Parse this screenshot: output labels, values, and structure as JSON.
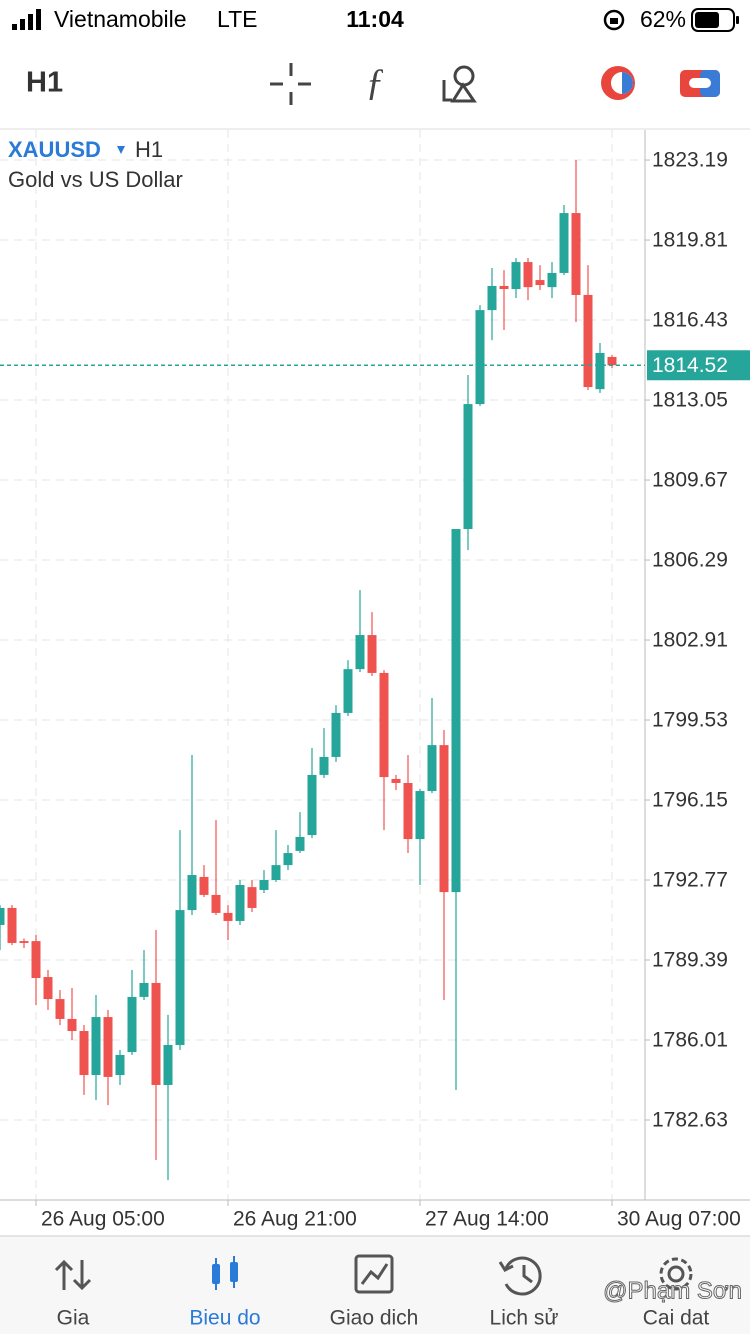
{
  "status_bar": {
    "carrier": "Vietnamobile",
    "network": "LTE",
    "time": "11:04",
    "battery": "62%"
  },
  "toolbar": {
    "timeframe": "H1"
  },
  "chart_data": {
    "type": "candlestick",
    "symbol": "XAUUSD",
    "timeframe": "H1",
    "description": "Gold vs US Dollar",
    "categories": [
      null,
      null,
      null,
      "26 Aug 05:00",
      null,
      null,
      null,
      null,
      null,
      null,
      null,
      null,
      null,
      null,
      null,
      null,
      null,
      null,
      null,
      "26 Aug 21:00",
      null,
      null,
      null,
      null,
      null,
      null,
      null,
      null,
      null,
      null,
      null,
      null,
      null,
      null,
      null,
      "27 Aug 14:00",
      null,
      null,
      null,
      null,
      null,
      null,
      null,
      null,
      null,
      null,
      null,
      null,
      null,
      null,
      null,
      "30 Aug 07:00"
    ],
    "open": [
      1790.87,
      1791.59,
      1790.19,
      1790.19,
      1788.67,
      1787.74,
      1786.9,
      1786.39,
      1784.53,
      1786.98,
      1784.53,
      1785.5,
      1787.83,
      1788.42,
      1784.11,
      1785.8,
      1791.5,
      1792.9,
      1792.14,
      1791.38,
      1791.04,
      1792.47,
      1792.35,
      1792.77,
      1793.4,
      1794.0,
      1794.67,
      1797.21,
      1797.97,
      1799.83,
      1801.68,
      1803.12,
      1801.52,
      1797.04,
      1796.87,
      1794.5,
      1796.53,
      1798.47,
      1792.26,
      1807.6,
      1812.88,
      1816.85,
      1817.87,
      1817.74,
      1818.88,
      1818.12,
      1817.82,
      1818.42,
      1820.95,
      1817.49,
      1813.51,
      1814.87
    ],
    "high": [
      1791.71,
      1791.71,
      1790.3,
      1790.45,
      1788.97,
      1788.12,
      1788.21,
      1786.64,
      1787.91,
      1787.28,
      1785.59,
      1788.97,
      1789.81,
      1790.66,
      1787.07,
      1794.88,
      1798.05,
      1793.4,
      1795.3,
      1791.71,
      1792.77,
      1792.77,
      1793.19,
      1794.88,
      1794.25,
      1795.64,
      1798.35,
      1799.19,
      1800.16,
      1802.06,
      1805.02,
      1804.09,
      1801.64,
      1797.21,
      1798.05,
      1796.61,
      1800.46,
      1799.11,
      1807.6,
      1814.11,
      1817.06,
      1818.63,
      1818.54,
      1819.05,
      1819.05,
      1818.75,
      1818.88,
      1821.29,
      1823.19,
      1818.75,
      1815.46,
      1814.95
    ],
    "low": [
      1789.81,
      1790.02,
      1789.9,
      1787.49,
      1787.28,
      1786.64,
      1786.01,
      1783.69,
      1783.47,
      1783.26,
      1784.11,
      1785.38,
      1787.7,
      1780.94,
      1780.09,
      1785.59,
      1791.29,
      1792.05,
      1791.29,
      1790.23,
      1790.87,
      1791.42,
      1792.22,
      1792.69,
      1793.19,
      1793.91,
      1794.54,
      1797.08,
      1797.76,
      1799.7,
      1801.56,
      1801.39,
      1794.88,
      1796.57,
      1793.91,
      1792.56,
      1796.44,
      1787.7,
      1783.9,
      1806.71,
      1812.8,
      1815.58,
      1816.01,
      1817.36,
      1817.27,
      1817.7,
      1817.36,
      1818.33,
      1816.35,
      1813.47,
      1813.35,
      1814.4
    ],
    "close": [
      1791.59,
      1790.11,
      1790.11,
      1788.63,
      1787.74,
      1786.9,
      1786.39,
      1784.53,
      1786.98,
      1784.45,
      1785.38,
      1787.83,
      1788.42,
      1784.11,
      1785.8,
      1791.5,
      1792.98,
      1792.14,
      1791.38,
      1791.04,
      1792.56,
      1791.59,
      1792.77,
      1793.4,
      1793.91,
      1794.59,
      1797.21,
      1797.97,
      1799.83,
      1801.68,
      1803.12,
      1801.52,
      1797.12,
      1796.87,
      1794.5,
      1796.53,
      1798.47,
      1792.26,
      1807.6,
      1812.88,
      1816.85,
      1817.87,
      1817.74,
      1818.88,
      1817.82,
      1817.91,
      1818.42,
      1820.95,
      1817.49,
      1813.6,
      1815.04,
      1814.52
    ],
    "up_color": "#26a69a",
    "down_color": "#ef5350",
    "last_price": 1814.52,
    "ylim": [
      1779.25,
      1824.46
    ],
    "yticks": [
      1823.19,
      1819.81,
      1816.43,
      1813.05,
      1809.67,
      1806.29,
      1802.91,
      1799.53,
      1796.15,
      1792.77,
      1789.39,
      1786.01,
      1782.63
    ],
    "grid": true
  },
  "tabs": [
    "Gia",
    "Bieu do",
    "Giao dich",
    "Lich sử",
    "Cai dat"
  ],
  "active_tab": 1,
  "watermark": "@Phạm Sơn"
}
